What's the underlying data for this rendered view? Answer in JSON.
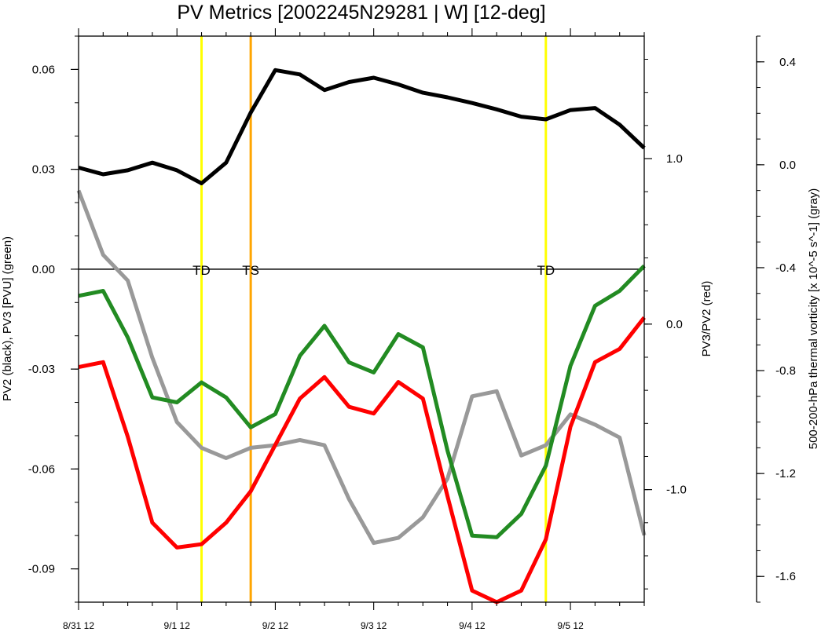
{
  "chart_data": {
    "type": "line",
    "title": "PV Metrics [2002245N29281 | W] [12-deg]",
    "x_tick_labels": [
      "8/31 12",
      "9/1 12",
      "9/2 12",
      "9/3 12",
      "9/4 12",
      "9/5 12"
    ],
    "x": [
      0,
      1,
      2,
      3,
      4,
      5,
      6,
      7,
      8,
      9,
      10,
      11,
      12,
      13,
      14,
      15,
      16,
      17,
      18,
      19,
      20,
      21,
      22,
      23
    ],
    "xlim": [
      0,
      23
    ],
    "axes": {
      "left": {
        "label": "PV2 (black), PV3 [PVU] (green)",
        "ylim": [
          -0.1,
          0.07
        ],
        "ticks": [
          0.06,
          0.03,
          0.0,
          -0.03,
          -0.06,
          -0.09
        ],
        "tick_labels": [
          "0.06",
          "0.03",
          "0.00",
          "-0.03",
          "-0.06",
          "-0.09"
        ]
      },
      "right": {
        "label": "PV3/PV2 (red)",
        "ylim": [
          -1.68,
          1.74
        ],
        "ticks": [
          1.0,
          0.0,
          -1.0
        ],
        "tick_labels": [
          "1.0",
          "0.0",
          "-1.0"
        ]
      },
      "far_right": {
        "label": "500-200-hPa thermal vorticity [x 10^-5 s^-1] (gray)",
        "ylim": [
          -1.7,
          0.5
        ],
        "ticks": [
          0.4,
          0.0,
          -0.4,
          -0.8,
          -1.2,
          -1.6
        ],
        "tick_labels": [
          "0.4",
          "0.0",
          "-0.4",
          "-0.8",
          "-1.2",
          "-1.6"
        ]
      }
    },
    "zero_line": 0.0,
    "events": [
      {
        "label": "TD",
        "x": 5.0,
        "color": "#ffff00"
      },
      {
        "label": "TS",
        "x": 7.0,
        "color": "#ffa500"
      },
      {
        "label": "TD",
        "x": 19.0,
        "color": "#ffff00"
      }
    ],
    "series": [
      {
        "name": "PV2",
        "axis": "left",
        "color": "#000000",
        "values": [
          0.0305,
          0.0285,
          0.0297,
          0.032,
          0.0297,
          0.0258,
          0.032,
          0.047,
          0.0598,
          0.0585,
          0.0538,
          0.0562,
          0.0575,
          0.0555,
          0.053,
          0.0516,
          0.0499,
          0.048,
          0.0458,
          0.045,
          0.0478,
          0.0484,
          0.0434,
          0.0364
        ]
      },
      {
        "name": "PV3",
        "axis": "left",
        "color": "#228b22",
        "values": [
          -0.008,
          -0.0065,
          -0.0205,
          -0.0385,
          -0.04,
          -0.034,
          -0.0385,
          -0.0475,
          -0.0435,
          -0.026,
          -0.017,
          -0.028,
          -0.031,
          -0.0195,
          -0.0235,
          -0.0545,
          -0.08,
          -0.0805,
          -0.0735,
          -0.059,
          -0.029,
          -0.011,
          -0.0065,
          0.001
        ]
      },
      {
        "name": "PV3/PV2",
        "axis": "right",
        "color": "#ff0000",
        "values": [
          -0.26,
          -0.23,
          -0.68,
          -1.2,
          -1.35,
          -1.33,
          -1.2,
          -1.01,
          -0.73,
          -0.45,
          -0.32,
          -0.5,
          -0.54,
          -0.35,
          -0.45,
          -1.04,
          -1.61,
          -1.68,
          -1.61,
          -1.3,
          -0.62,
          -0.23,
          -0.15,
          0.04
        ]
      },
      {
        "name": "thermal vorticity",
        "axis": "far_right",
        "color": "#999999",
        "values": [
          -0.1,
          -0.35,
          -0.45,
          -0.75,
          -1.0,
          -1.1,
          -1.14,
          -1.1,
          -1.09,
          -1.07,
          -1.09,
          -1.3,
          -1.47,
          -1.45,
          -1.37,
          -1.22,
          -0.9,
          -0.88,
          -1.13,
          -1.09,
          -0.97,
          -1.01,
          -1.06,
          -1.44
        ]
      }
    ]
  }
}
